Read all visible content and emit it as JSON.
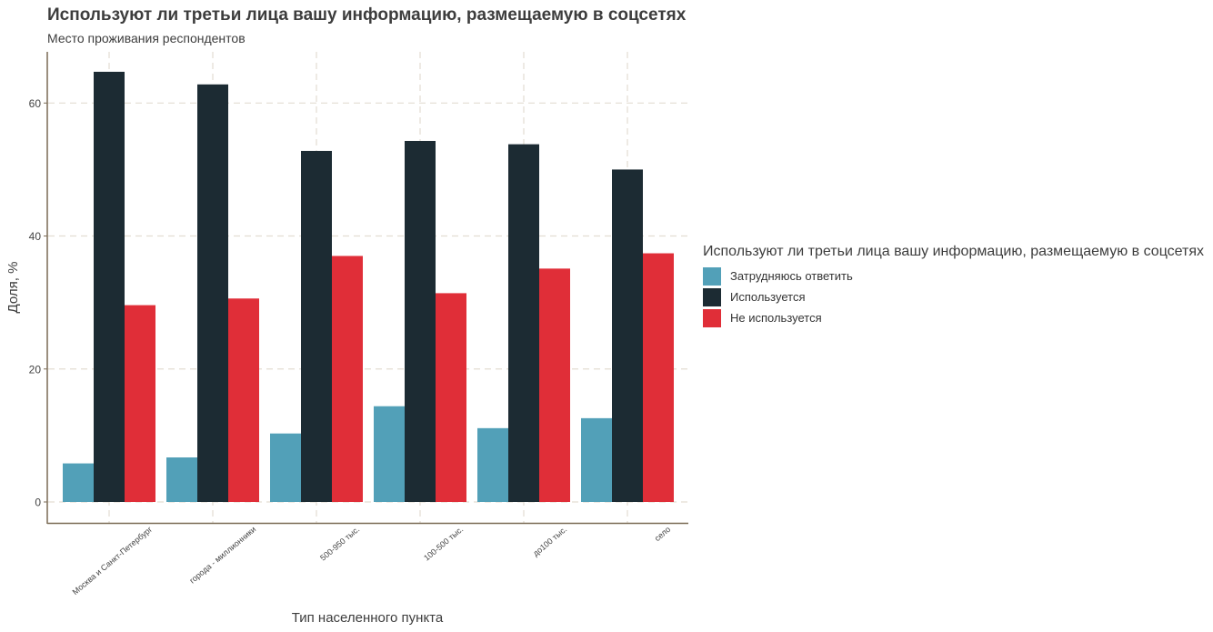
{
  "chart_data": {
    "type": "bar",
    "title": "Используют ли третьи лица вашу информацию, размещаемую в соцсетях",
    "subtitle": "Место проживания респондентов",
    "xlabel": "Тип населенного пункта",
    "ylabel": "Доля, %",
    "ylim": [
      0,
      68
    ],
    "yticks": [
      0,
      20,
      40,
      60
    ],
    "grid": true,
    "legend_position": "right",
    "legend_title": "Используют ли третьи лица вашу информацию, размещаемую в соцсетях",
    "categories": [
      "Москва и Санкт-Петербург",
      "города - миллионники",
      "500-950 тыс.",
      "100-500 тыс.",
      "до100 тыс.",
      "село"
    ],
    "series": [
      {
        "name": "Затрудняюсь ответить",
        "color": "#52a0b8",
        "values": [
          5.8,
          6.7,
          10.3,
          14.4,
          11.1,
          12.6
        ]
      },
      {
        "name": "Используется",
        "color": "#1c2b33",
        "values": [
          64.7,
          62.8,
          52.8,
          54.3,
          53.8,
          50.0
        ]
      },
      {
        "name": "Не используется",
        "color": "#e02e38",
        "values": [
          29.6,
          30.6,
          37.0,
          31.4,
          35.1,
          37.4
        ]
      }
    ]
  }
}
